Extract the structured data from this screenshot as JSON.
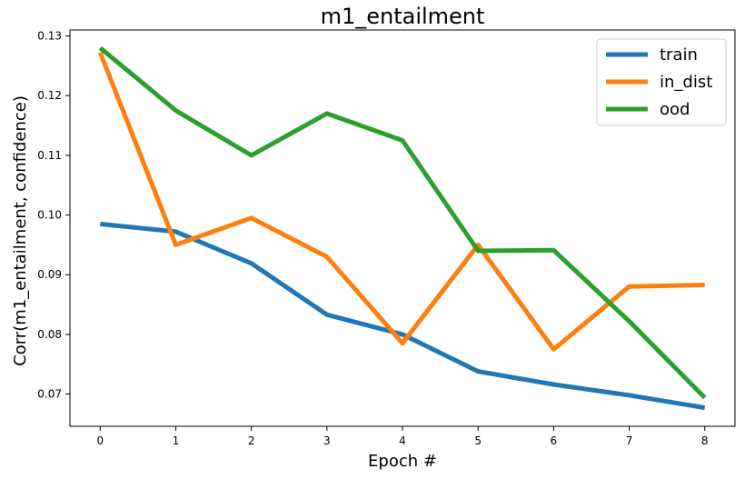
{
  "chart_data": {
    "type": "line",
    "title": "m1_entailment",
    "xlabel": "Epoch #",
    "ylabel": "Corr(m1_entailment, confidence)",
    "x": [
      0,
      1,
      2,
      3,
      4,
      5,
      6,
      7,
      8
    ],
    "xlim": [
      -0.4,
      8.4
    ],
    "ylim": [
      0.0646,
      0.131
    ],
    "xticks": [
      "0",
      "1",
      "2",
      "3",
      "4",
      "5",
      "6",
      "7",
      "8"
    ],
    "yticks": [
      "0.07",
      "0.08",
      "0.09",
      "0.10",
      "0.11",
      "0.12",
      "0.13"
    ],
    "grid": false,
    "legend_position": "top-right",
    "series": [
      {
        "name": "train",
        "color": "#1f77b4",
        "values": [
          0.0985,
          0.0972,
          0.0919,
          0.0833,
          0.08,
          0.0738,
          0.0716,
          0.0698,
          0.0677
        ]
      },
      {
        "name": "in_dist",
        "color": "#ff7f0e",
        "values": [
          0.1272,
          0.095,
          0.0995,
          0.093,
          0.0785,
          0.095,
          0.0775,
          0.088,
          0.0883
        ]
      },
      {
        "name": "ood",
        "color": "#2ca02c",
        "values": [
          0.128,
          0.1175,
          0.11,
          0.117,
          0.1125,
          0.094,
          0.0941,
          0.0822,
          0.0694
        ]
      }
    ]
  }
}
